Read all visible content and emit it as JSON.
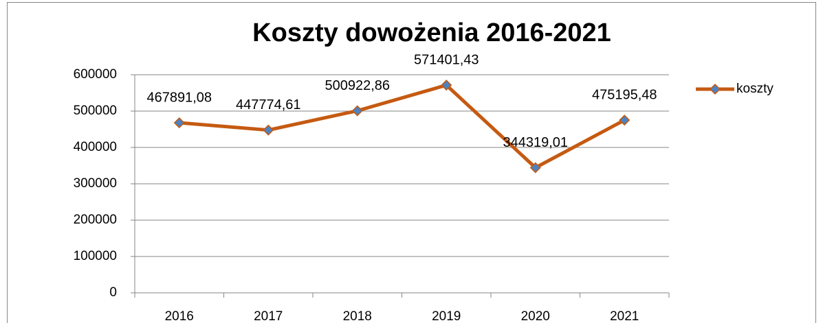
{
  "chart_data": {
    "type": "line",
    "title": "Koszty dowożenia 2016-2021",
    "categories": [
      "2016",
      "2017",
      "2018",
      "2019",
      "2020",
      "2021"
    ],
    "series": [
      {
        "name": "koszty",
        "color": "#c55a11",
        "marker_color": "#4f81bd",
        "values": [
          467891.08,
          447774.61,
          500922.86,
          571401.43,
          344319.01,
          475195.48
        ],
        "value_labels": [
          "467891,08",
          "447774,61",
          "500922,86",
          "571401,43",
          "344319,01",
          "475195,48"
        ]
      }
    ],
    "ylim": [
      0,
      600000
    ],
    "yticks": [
      0,
      100000,
      200000,
      300000,
      400000,
      500000,
      600000
    ],
    "grid": true,
    "legend": "right"
  }
}
